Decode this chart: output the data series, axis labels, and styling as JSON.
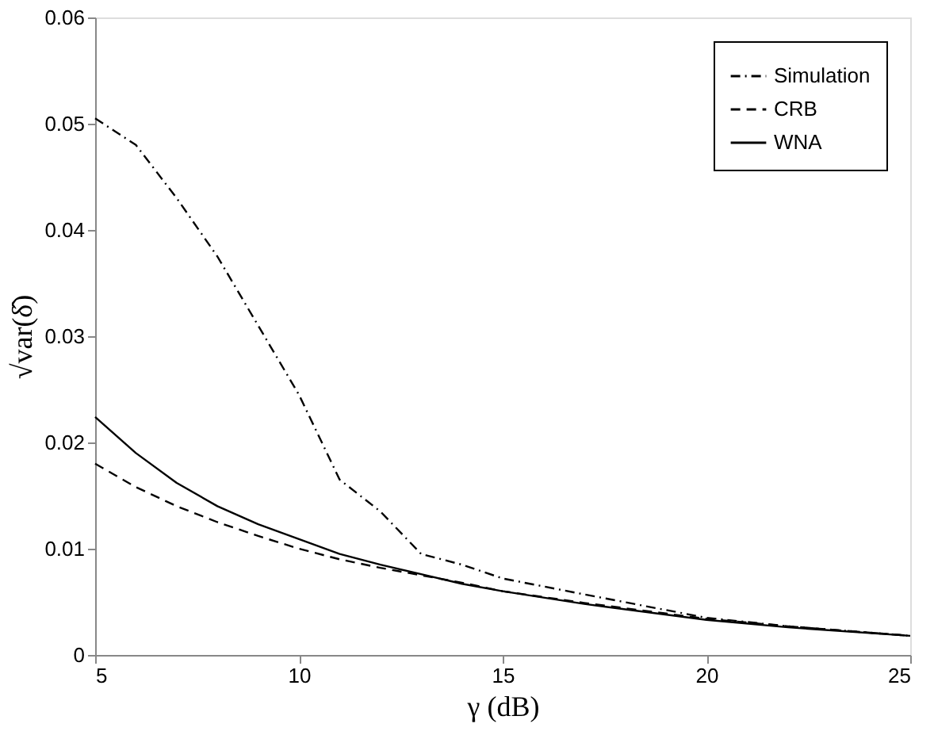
{
  "chart_data": {
    "type": "line",
    "xlabel": "γ (dB)",
    "ylabel": "√var(δ̂)",
    "xlim": [
      5,
      25
    ],
    "xticks": [
      5,
      10,
      15,
      20,
      25
    ],
    "ylim": [
      0,
      0.06
    ],
    "yticks": [
      0,
      0.01,
      0.02,
      0.03,
      0.04,
      0.05,
      0.06
    ],
    "x": [
      5,
      6,
      7,
      8,
      9,
      10,
      11,
      12,
      13,
      14,
      15,
      17,
      20,
      22,
      25
    ],
    "series": [
      {
        "name": "Simulation",
        "color": "#000000",
        "line_style": "dashdot",
        "values": [
          0.0505,
          0.048,
          0.043,
          0.0375,
          0.031,
          0.0245,
          0.0165,
          0.0135,
          0.0095,
          0.0085,
          0.0072,
          0.0057,
          0.0035,
          0.0027,
          0.0018
        ]
      },
      {
        "name": "CRB",
        "color": "#000000",
        "line_style": "dashed",
        "values": [
          0.018,
          0.0158,
          0.014,
          0.0125,
          0.0112,
          0.01,
          0.009,
          0.0082,
          0.0075,
          0.0068,
          0.006,
          0.0049,
          0.0034,
          0.0027,
          0.0018
        ]
      },
      {
        "name": "WNA",
        "color": "#000000",
        "line_style": "solid",
        "values": [
          0.0224,
          0.019,
          0.0162,
          0.014,
          0.0123,
          0.0109,
          0.0095,
          0.0085,
          0.0076,
          0.0067,
          0.006,
          0.0048,
          0.0033,
          0.0026,
          0.0018
        ]
      }
    ],
    "grid": false,
    "legend": "top right"
  }
}
